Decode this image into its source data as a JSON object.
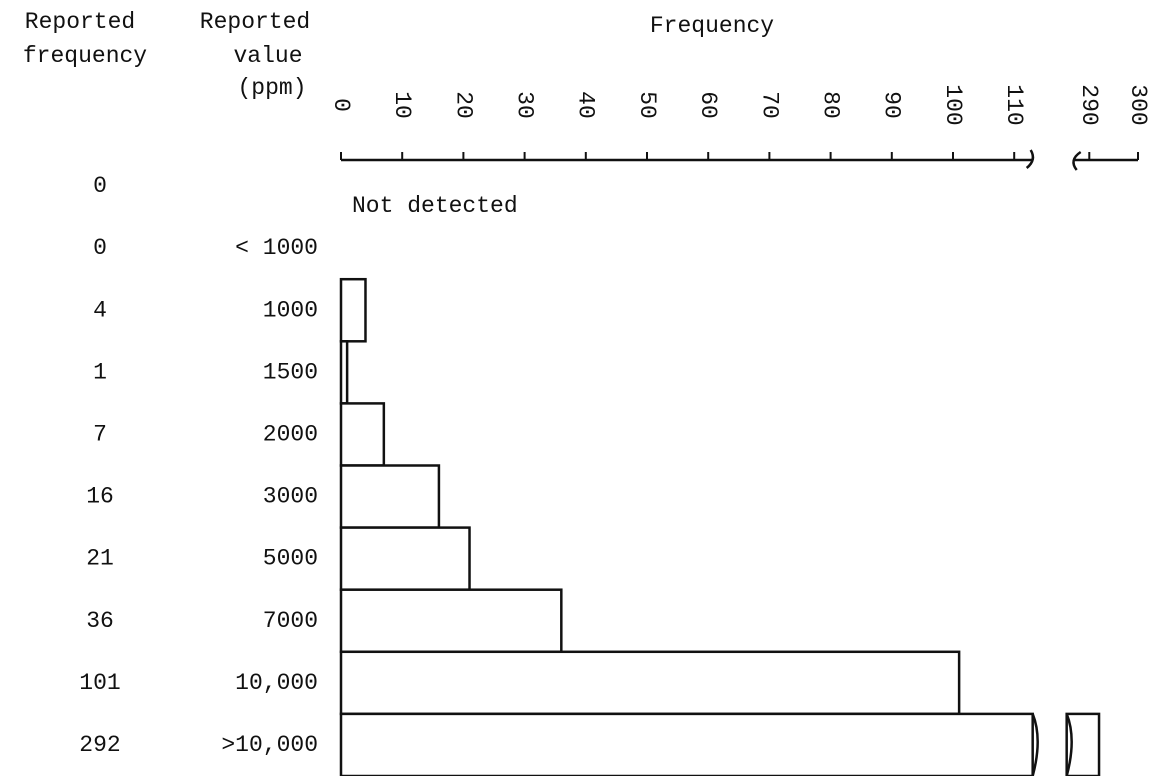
{
  "chart_data": {
    "type": "bar",
    "orientation": "horizontal",
    "frequency_header": [
      "Reported",
      "frequency"
    ],
    "value_header": [
      "Reported",
      "value",
      "(ppm)"
    ],
    "x_label": "Frequency",
    "categories": [
      "Not detected",
      "< 1000",
      "1000",
      "1500",
      "2000",
      "3000",
      "5000",
      "7000",
      "10,000",
      ">10,000"
    ],
    "values": [
      0,
      0,
      4,
      1,
      7,
      16,
      21,
      36,
      101,
      292
    ],
    "color": "#ffffff",
    "xlim": [
      0,
      300
    ],
    "xbreak": [
      114,
      287
    ],
    "xticks": [
      0,
      10,
      20,
      30,
      40,
      50,
      60,
      70,
      80,
      90,
      100,
      110,
      290,
      300
    ]
  }
}
